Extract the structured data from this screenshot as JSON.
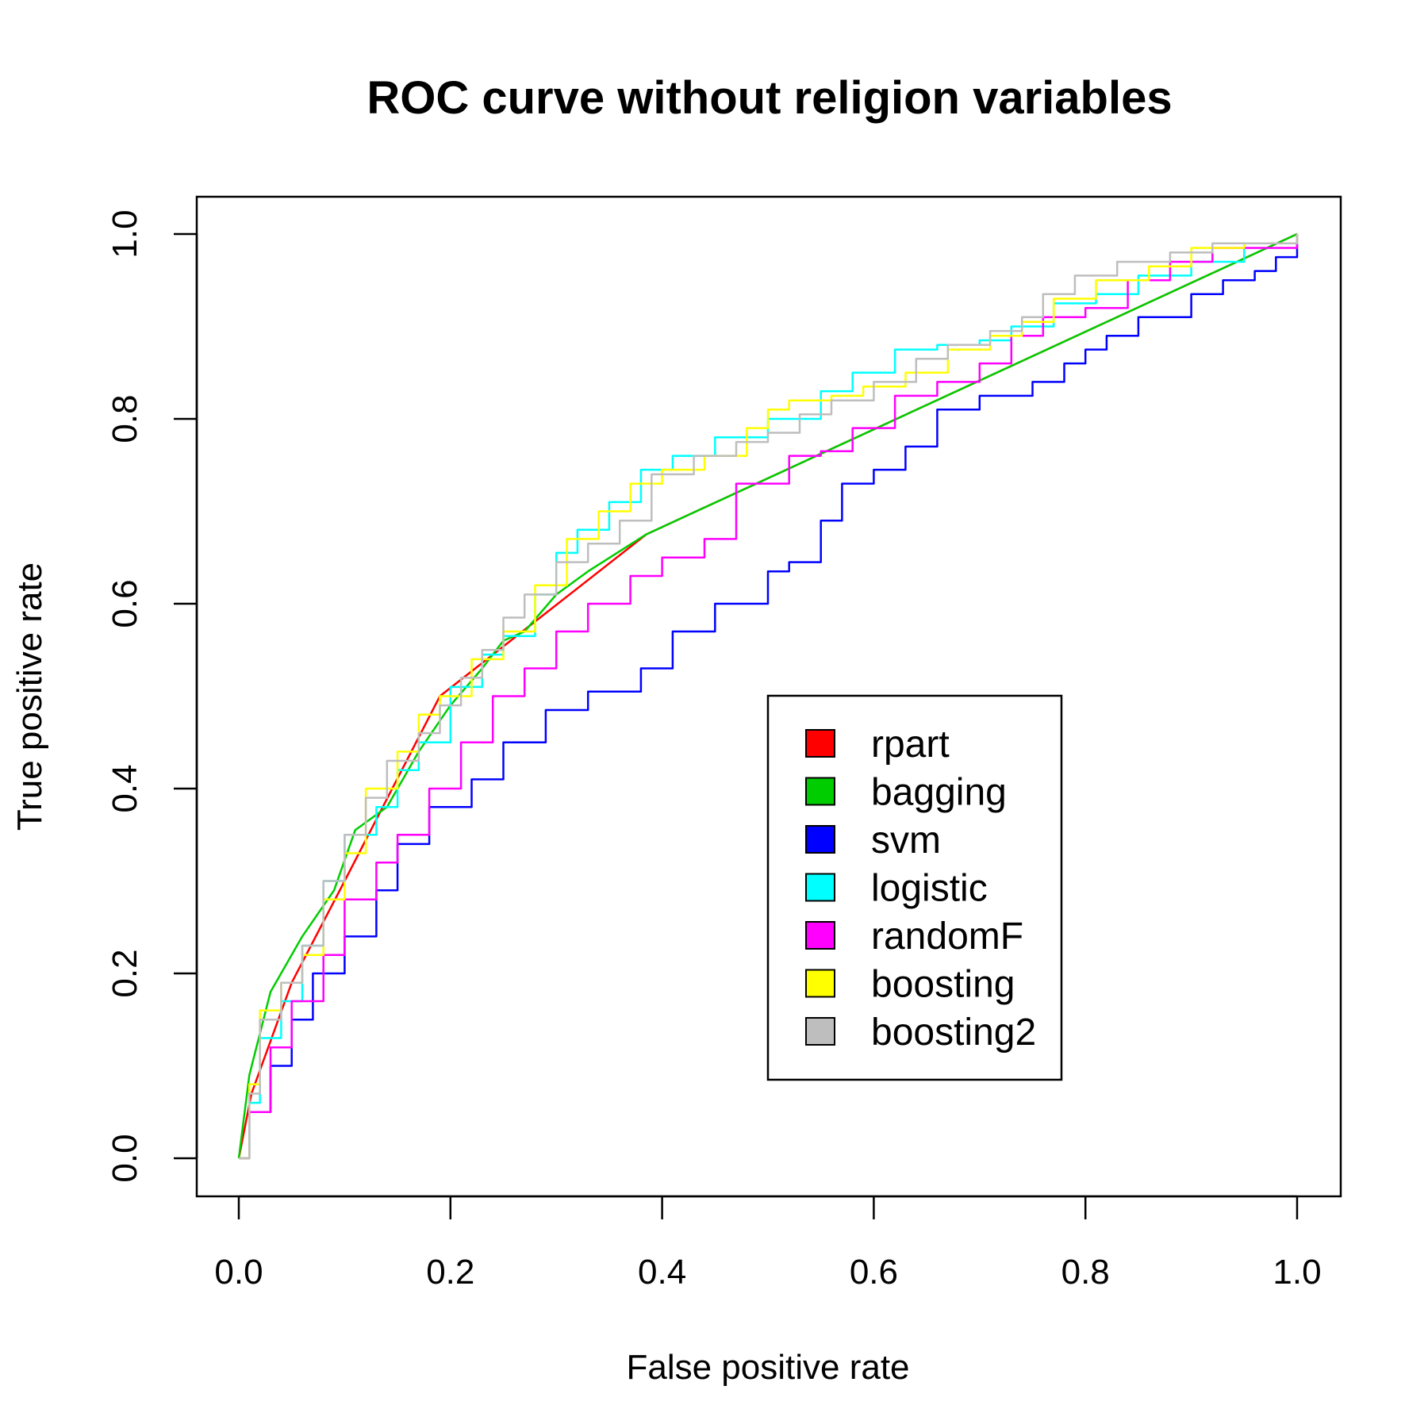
{
  "chart_data": {
    "type": "line",
    "title": "ROC curve without religion variables",
    "xlabel": "False positive rate",
    "ylabel": "True positive rate",
    "xlim": [
      0,
      1
    ],
    "ylim": [
      0,
      1
    ],
    "xticks": [
      "0.0",
      "0.2",
      "0.4",
      "0.6",
      "0.8",
      "1.0"
    ],
    "yticks": [
      "0.0",
      "0.2",
      "0.4",
      "0.6",
      "0.8",
      "1.0"
    ],
    "grid": false,
    "legend_position": "center-right",
    "series": [
      {
        "name": "rpart",
        "color": "#ff0000",
        "step": false,
        "points": [
          [
            0,
            0
          ],
          [
            0.012,
            0.07
          ],
          [
            0.05,
            0.19
          ],
          [
            0.1,
            0.3
          ],
          [
            0.19,
            0.5
          ],
          [
            0.385,
            0.675
          ],
          [
            1,
            1
          ]
        ]
      },
      {
        "name": "bagging",
        "color": "#00cd00",
        "step": false,
        "points": [
          [
            0,
            0
          ],
          [
            0.01,
            0.09
          ],
          [
            0.03,
            0.18
          ],
          [
            0.06,
            0.24
          ],
          [
            0.09,
            0.29
          ],
          [
            0.11,
            0.355
          ],
          [
            0.14,
            0.38
          ],
          [
            0.17,
            0.44
          ],
          [
            0.2,
            0.49
          ],
          [
            0.23,
            0.53
          ],
          [
            0.25,
            0.56
          ],
          [
            0.27,
            0.57
          ],
          [
            0.3,
            0.61
          ],
          [
            0.33,
            0.635
          ],
          [
            0.385,
            0.675
          ],
          [
            1,
            1
          ]
        ]
      },
      {
        "name": "svm",
        "color": "#0000ff",
        "step": true,
        "points": [
          [
            0,
            0
          ],
          [
            0.01,
            0.05
          ],
          [
            0.03,
            0.1
          ],
          [
            0.05,
            0.15
          ],
          [
            0.07,
            0.2
          ],
          [
            0.1,
            0.24
          ],
          [
            0.13,
            0.29
          ],
          [
            0.15,
            0.34
          ],
          [
            0.18,
            0.38
          ],
          [
            0.22,
            0.41
          ],
          [
            0.25,
            0.45
          ],
          [
            0.29,
            0.485
          ],
          [
            0.33,
            0.505
          ],
          [
            0.38,
            0.53
          ],
          [
            0.41,
            0.57
          ],
          [
            0.45,
            0.6
          ],
          [
            0.5,
            0.635
          ],
          [
            0.52,
            0.645
          ],
          [
            0.55,
            0.69
          ],
          [
            0.57,
            0.73
          ],
          [
            0.6,
            0.745
          ],
          [
            0.63,
            0.77
          ],
          [
            0.66,
            0.81
          ],
          [
            0.7,
            0.825
          ],
          [
            0.75,
            0.84
          ],
          [
            0.78,
            0.86
          ],
          [
            0.8,
            0.875
          ],
          [
            0.82,
            0.89
          ],
          [
            0.85,
            0.91
          ],
          [
            0.9,
            0.935
          ],
          [
            0.93,
            0.95
          ],
          [
            0.96,
            0.96
          ],
          [
            0.98,
            0.975
          ],
          [
            1,
            1
          ]
        ]
      },
      {
        "name": "logistic",
        "color": "#00ffff",
        "step": true,
        "points": [
          [
            0,
            0
          ],
          [
            0.01,
            0.06
          ],
          [
            0.02,
            0.13
          ],
          [
            0.04,
            0.17
          ],
          [
            0.06,
            0.23
          ],
          [
            0.08,
            0.3
          ],
          [
            0.1,
            0.35
          ],
          [
            0.13,
            0.38
          ],
          [
            0.15,
            0.42
          ],
          [
            0.17,
            0.45
          ],
          [
            0.2,
            0.51
          ],
          [
            0.23,
            0.545
          ],
          [
            0.25,
            0.565
          ],
          [
            0.28,
            0.61
          ],
          [
            0.3,
            0.655
          ],
          [
            0.32,
            0.68
          ],
          [
            0.35,
            0.71
          ],
          [
            0.38,
            0.745
          ],
          [
            0.41,
            0.76
          ],
          [
            0.45,
            0.78
          ],
          [
            0.5,
            0.8
          ],
          [
            0.55,
            0.83
          ],
          [
            0.58,
            0.85
          ],
          [
            0.62,
            0.875
          ],
          [
            0.66,
            0.88
          ],
          [
            0.7,
            0.885
          ],
          [
            0.73,
            0.9
          ],
          [
            0.77,
            0.925
          ],
          [
            0.81,
            0.935
          ],
          [
            0.85,
            0.955
          ],
          [
            0.9,
            0.97
          ],
          [
            0.95,
            0.99
          ],
          [
            1,
            1
          ]
        ]
      },
      {
        "name": "randomF",
        "color": "#ff00ff",
        "step": true,
        "points": [
          [
            0,
            0
          ],
          [
            0.01,
            0.05
          ],
          [
            0.03,
            0.12
          ],
          [
            0.05,
            0.17
          ],
          [
            0.08,
            0.22
          ],
          [
            0.1,
            0.28
          ],
          [
            0.13,
            0.32
          ],
          [
            0.15,
            0.35
          ],
          [
            0.18,
            0.4
          ],
          [
            0.21,
            0.45
          ],
          [
            0.24,
            0.5
          ],
          [
            0.27,
            0.53
          ],
          [
            0.3,
            0.57
          ],
          [
            0.33,
            0.6
          ],
          [
            0.37,
            0.63
          ],
          [
            0.4,
            0.65
          ],
          [
            0.44,
            0.67
          ],
          [
            0.47,
            0.73
          ],
          [
            0.52,
            0.76
          ],
          [
            0.55,
            0.765
          ],
          [
            0.58,
            0.79
          ],
          [
            0.62,
            0.825
          ],
          [
            0.66,
            0.84
          ],
          [
            0.7,
            0.86
          ],
          [
            0.73,
            0.89
          ],
          [
            0.76,
            0.91
          ],
          [
            0.8,
            0.92
          ],
          [
            0.84,
            0.95
          ],
          [
            0.88,
            0.97
          ],
          [
            0.92,
            0.985
          ],
          [
            1,
            1
          ]
        ]
      },
      {
        "name": "boosting",
        "color": "#ffff00",
        "step": true,
        "points": [
          [
            0,
            0
          ],
          [
            0.01,
            0.08
          ],
          [
            0.02,
            0.16
          ],
          [
            0.04,
            0.19
          ],
          [
            0.06,
            0.22
          ],
          [
            0.08,
            0.28
          ],
          [
            0.1,
            0.33
          ],
          [
            0.12,
            0.4
          ],
          [
            0.15,
            0.44
          ],
          [
            0.17,
            0.48
          ],
          [
            0.19,
            0.5
          ],
          [
            0.22,
            0.54
          ],
          [
            0.25,
            0.57
          ],
          [
            0.28,
            0.62
          ],
          [
            0.31,
            0.67
          ],
          [
            0.34,
            0.7
          ],
          [
            0.37,
            0.73
          ],
          [
            0.4,
            0.745
          ],
          [
            0.44,
            0.76
          ],
          [
            0.48,
            0.79
          ],
          [
            0.5,
            0.81
          ],
          [
            0.52,
            0.82
          ],
          [
            0.56,
            0.825
          ],
          [
            0.59,
            0.835
          ],
          [
            0.63,
            0.85
          ],
          [
            0.67,
            0.875
          ],
          [
            0.71,
            0.89
          ],
          [
            0.74,
            0.905
          ],
          [
            0.77,
            0.93
          ],
          [
            0.81,
            0.95
          ],
          [
            0.86,
            0.965
          ],
          [
            0.9,
            0.985
          ],
          [
            0.95,
            0.99
          ],
          [
            1,
            1
          ]
        ]
      },
      {
        "name": "boosting2",
        "color": "#bebebe",
        "step": true,
        "points": [
          [
            0,
            0
          ],
          [
            0.01,
            0.07
          ],
          [
            0.02,
            0.15
          ],
          [
            0.04,
            0.19
          ],
          [
            0.06,
            0.23
          ],
          [
            0.08,
            0.3
          ],
          [
            0.1,
            0.35
          ],
          [
            0.12,
            0.39
          ],
          [
            0.14,
            0.43
          ],
          [
            0.17,
            0.46
          ],
          [
            0.19,
            0.49
          ],
          [
            0.21,
            0.52
          ],
          [
            0.23,
            0.55
          ],
          [
            0.25,
            0.585
          ],
          [
            0.27,
            0.61
          ],
          [
            0.3,
            0.645
          ],
          [
            0.33,
            0.665
          ],
          [
            0.36,
            0.69
          ],
          [
            0.39,
            0.74
          ],
          [
            0.43,
            0.76
          ],
          [
            0.47,
            0.775
          ],
          [
            0.5,
            0.785
          ],
          [
            0.53,
            0.805
          ],
          [
            0.56,
            0.82
          ],
          [
            0.6,
            0.84
          ],
          [
            0.64,
            0.865
          ],
          [
            0.67,
            0.88
          ],
          [
            0.71,
            0.895
          ],
          [
            0.74,
            0.91
          ],
          [
            0.76,
            0.935
          ],
          [
            0.79,
            0.955
          ],
          [
            0.83,
            0.97
          ],
          [
            0.88,
            0.98
          ],
          [
            0.92,
            0.99
          ],
          [
            1,
            1
          ]
        ]
      }
    ]
  }
}
